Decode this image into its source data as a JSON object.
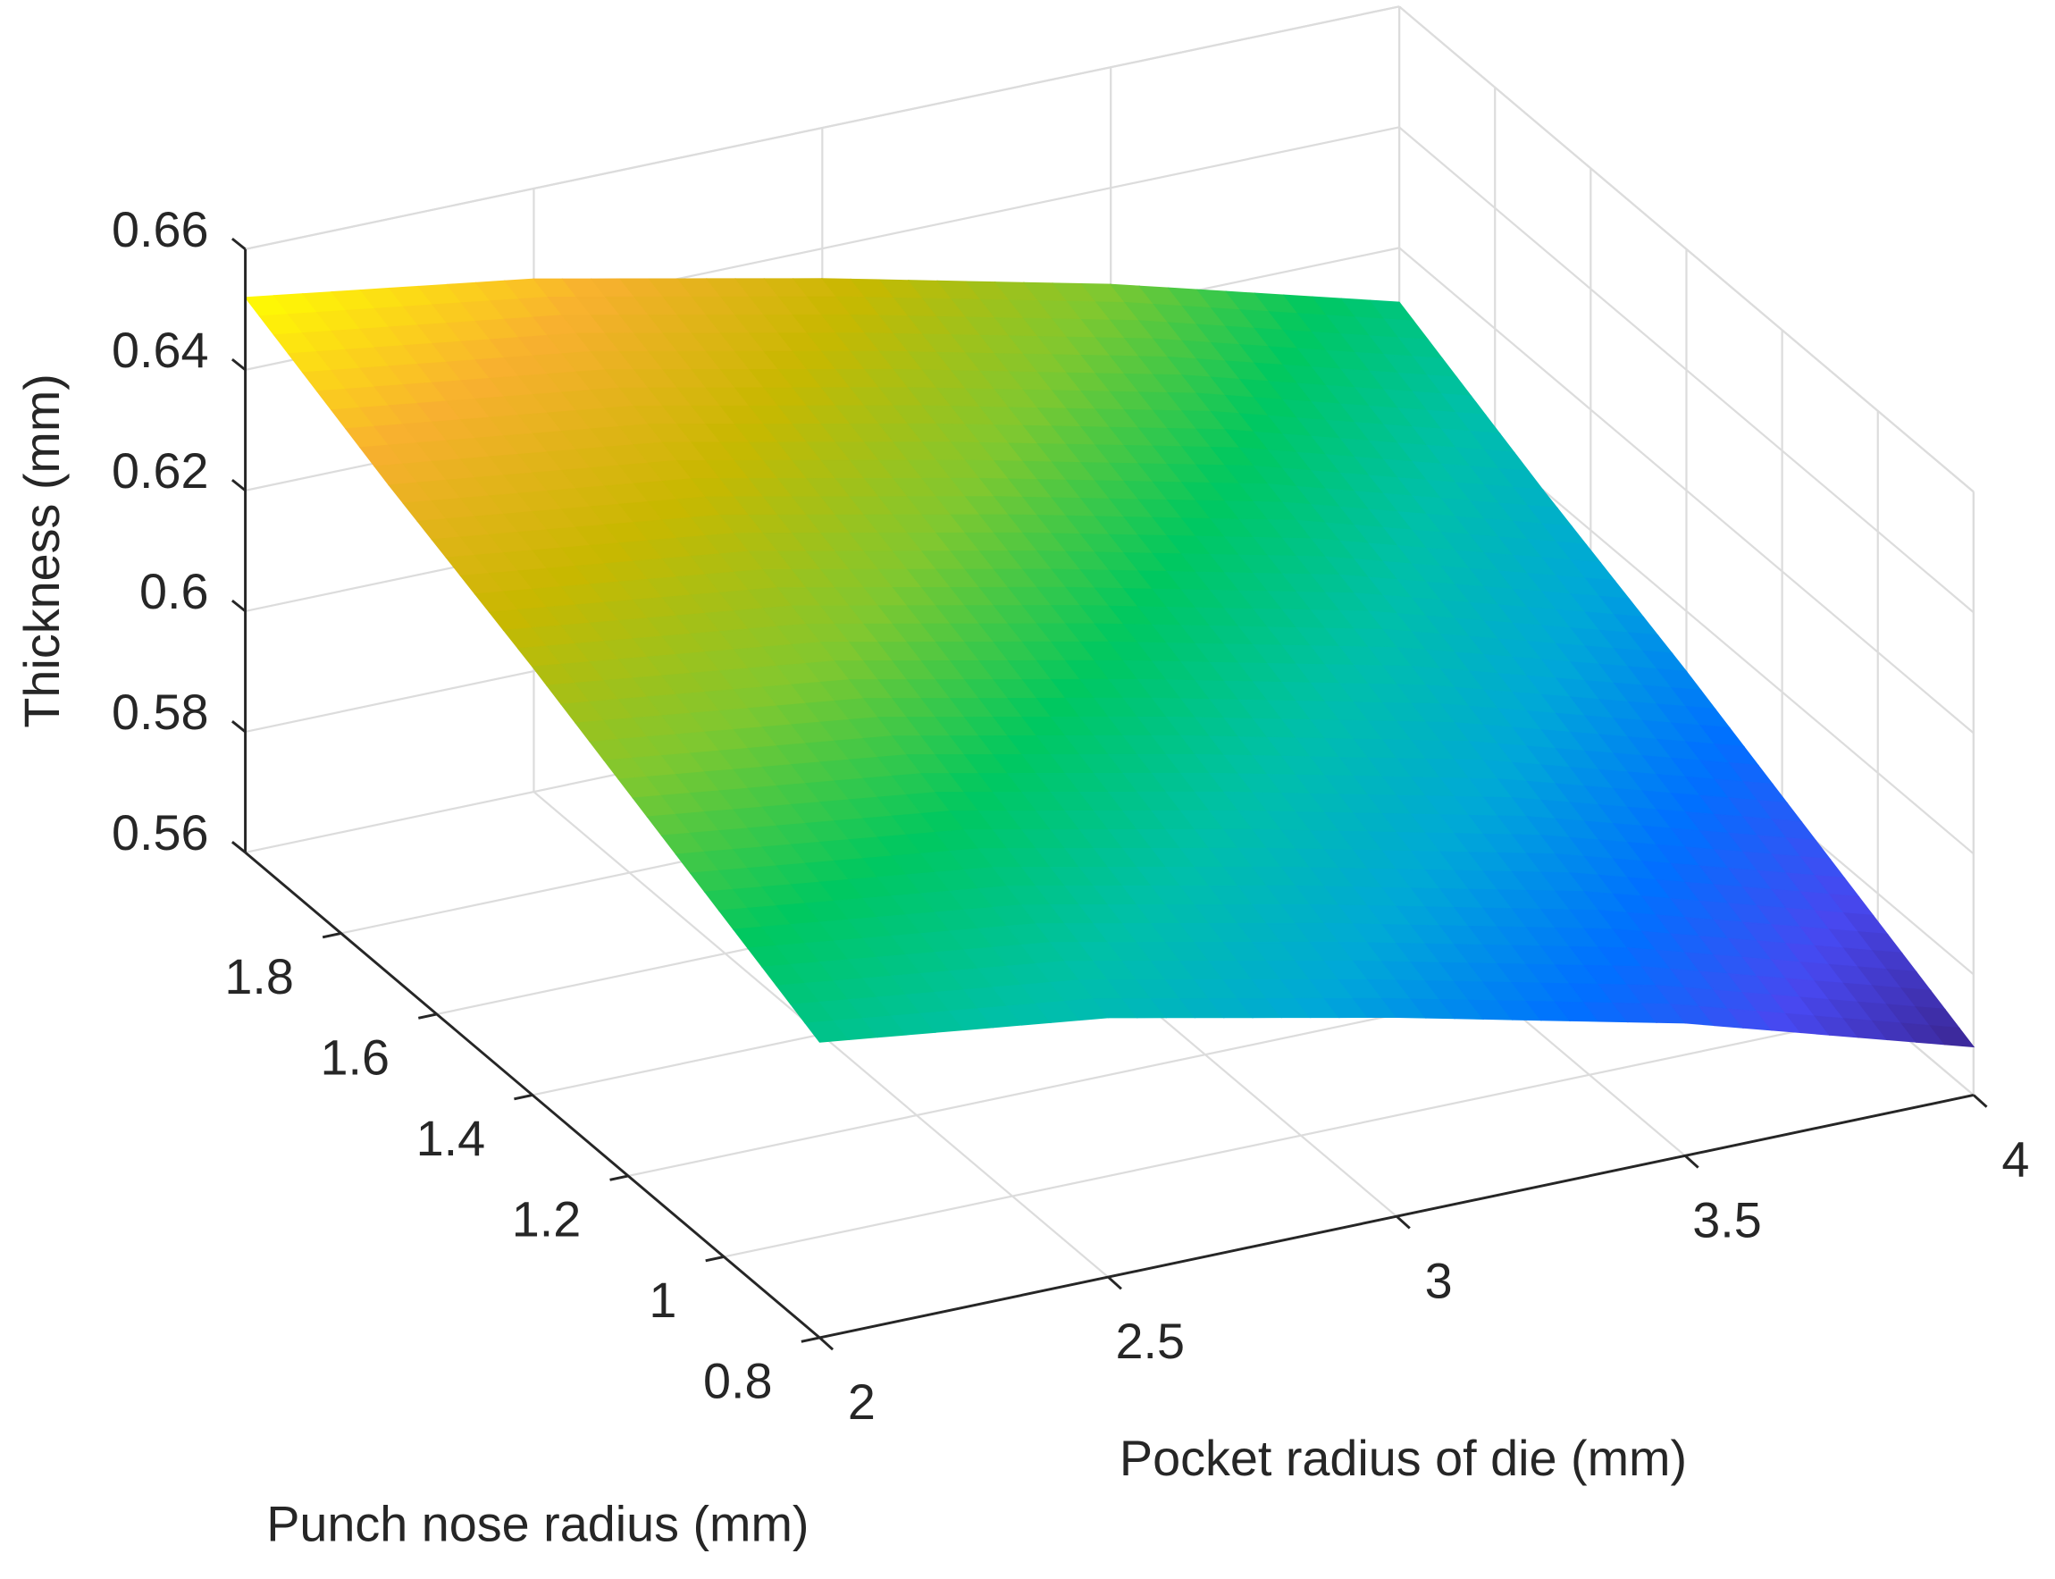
{
  "chart_data": {
    "type": "surface",
    "x_label": "Pocket radius of die (mm)",
    "y_label": "Punch nose radius (mm)",
    "z_label": "Thickness (mm)",
    "x": [
      2,
      2.5,
      3,
      3.5,
      4
    ],
    "y": [
      0.8,
      1.1,
      1.4,
      1.7,
      2
    ],
    "z": [
      [
        0.609,
        0.603,
        0.593,
        0.582,
        0.568
      ],
      [
        0.62,
        0.614,
        0.604,
        0.593,
        0.579
      ],
      [
        0.631,
        0.625,
        0.615,
        0.604,
        0.59
      ],
      [
        0.641,
        0.635,
        0.625,
        0.614,
        0.6
      ],
      [
        0.652,
        0.645,
        0.635,
        0.624,
        0.611
      ]
    ],
    "xlim": [
      2,
      4
    ],
    "ylim": [
      0.8,
      2
    ],
    "zlim": [
      0.56,
      0.66
    ],
    "xticks": [
      2,
      2.5,
      3,
      3.5,
      4
    ],
    "yticks": [
      0.8,
      1,
      1.2,
      1.4,
      1.6,
      1.8
    ],
    "zticks": [
      0.56,
      0.58,
      0.6,
      0.62,
      0.64,
      0.66
    ],
    "grid": true,
    "colormap": [
      "#3b2590",
      "#4848f0",
      "#0070ff",
      "#00a8d8",
      "#00c0a8",
      "#00c860",
      "#80c830",
      "#c8b800",
      "#f8b030",
      "#ffff00"
    ]
  }
}
